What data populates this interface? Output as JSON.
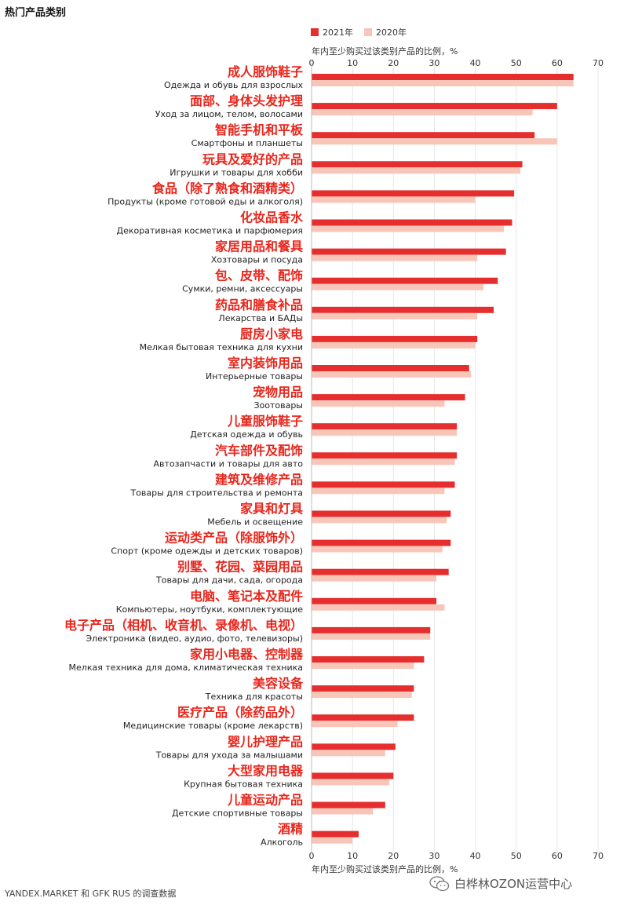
{
  "page": {
    "title": "热门产品类别",
    "source": "YANDEX.MARKET 和 GFK RUS 的调查数据",
    "watermark": "白桦林OZON运营中心"
  },
  "colors": {
    "series_2021": "#e62e2e",
    "series_2020": "#f8c6b8",
    "label_cn": "#e8261c",
    "label_ru": "#222222",
    "grid": "#e6e6e6",
    "axis_text": "#333333"
  },
  "chart_data": {
    "type": "bar",
    "orientation": "horizontal",
    "xlabel_top": "年内至少购买过该类别产品的比例，%",
    "xlabel_bottom": "年内至少购买过该类别产品的比例，%",
    "xlim": [
      0,
      70
    ],
    "xticks": [
      0,
      10,
      20,
      30,
      40,
      50,
      60,
      70
    ],
    "grid": true,
    "legend_position": "top",
    "categories_cn": [
      "成人服饰鞋子",
      "面部、身体头发护理",
      "智能手机和平板",
      "玩具及爱好的产品",
      "食品（除了熟食和酒精类）",
      "化妆品香水",
      "家居用品和餐具",
      "包、皮带、配饰",
      "药品和膳食补品",
      "厨房小家电",
      "室内装饰用品",
      "宠物用品",
      "儿童服饰鞋子",
      "汽车部件及配饰",
      "建筑及维修产品",
      "家具和灯具",
      "运动类产品（除服饰外）",
      "别墅、花园、菜园用品",
      "电脑、笔记本及配件",
      "电子产品（相机、收音机、录像机、电视）",
      "家用小电器、控制器",
      "美容设备",
      "医疗产品（除药品外）",
      "婴儿护理产品",
      "大型家用电器",
      "儿童运动产品",
      "酒精"
    ],
    "categories_ru": [
      "Одежда и обувь для взрослых",
      "Уход за лицом, телом, волосами",
      "Смартфоны и планшеты",
      "Игрушки и товары для хобби",
      "Продукты (кроме готовой еды и алкоголя)",
      "Декоративная косметика и парфюмерия",
      "Хозтовары и посуда",
      "Сумки, ремни, аксессуары",
      "Лекарства и БАДы",
      "Мелкая бытовая техника для кухни",
      "Интерьерные товары",
      "Зоотовары",
      "Детская одежда и обувь",
      "Автозапчасти и товары для авто",
      "Товары для строительства и ремонта",
      "Мебель и освещение",
      "Спорт (кроме одежды и детских товаров)",
      "Товары для дачи, сада, огорода",
      "Компьютеры, ноутбуки, комплектующие",
      "Электроника (видео, аудио, фото, телевизоры)",
      "Мелкая техника для дома, климатическая техника",
      "Техника для красоты",
      "Медицинские товары (кроме лекарств)",
      "Товары для ухода за малышами",
      "Крупная бытовая техника",
      "Детские спортивные товары",
      "Алкоголь"
    ],
    "series": [
      {
        "name": "2021年",
        "values": [
          64,
          60,
          54.5,
          51.5,
          49.5,
          49,
          47.5,
          45.5,
          44.5,
          40.5,
          38.5,
          37.5,
          35.5,
          35.5,
          35,
          34,
          34,
          33.5,
          30.5,
          29,
          27.5,
          25,
          25,
          20.5,
          20,
          18,
          11.5
        ]
      },
      {
        "name": "2020年",
        "values": [
          64,
          54,
          60,
          51,
          40,
          47,
          40.5,
          42,
          40.5,
          40,
          39,
          32.5,
          35.5,
          35,
          32.5,
          33,
          32,
          30.5,
          32.5,
          29,
          25,
          24.5,
          21,
          18,
          19,
          15,
          10
        ]
      }
    ]
  }
}
